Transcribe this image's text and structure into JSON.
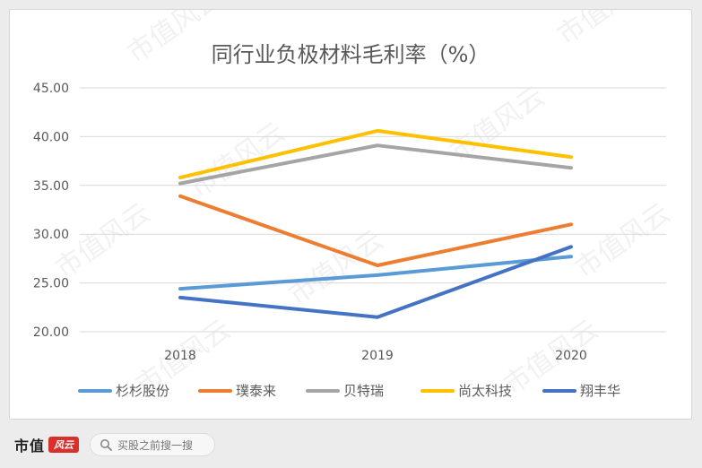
{
  "chart_data": {
    "type": "line",
    "title": "同行业负极材料毛利率（%）",
    "x": [
      "2018",
      "2019",
      "2020"
    ],
    "y_ticks": [
      "20.00",
      "25.00",
      "30.00",
      "35.00",
      "40.00",
      "45.00"
    ],
    "ylim": [
      20,
      45
    ],
    "grid": true,
    "legend_position": "bottom",
    "series": [
      {
        "name": "杉杉股份",
        "color": "#5b9bd5",
        "values": [
          24.4,
          25.8,
          27.7
        ]
      },
      {
        "name": "璞泰来",
        "color": "#ed7d31",
        "values": [
          33.9,
          26.8,
          31.0
        ]
      },
      {
        "name": "贝特瑞",
        "color": "#a5a5a5",
        "values": [
          35.2,
          39.1,
          36.8
        ]
      },
      {
        "name": "尚太科技",
        "color": "#ffc000",
        "values": [
          35.8,
          40.6,
          37.9
        ]
      },
      {
        "name": "翔丰华",
        "color": "#4472c4",
        "values": [
          23.5,
          21.5,
          28.7
        ]
      }
    ]
  },
  "watermark": "市值风云",
  "footer": {
    "brand_text": "市值",
    "brand_mark": "风云",
    "search_placeholder": "买股之前搜一搜"
  }
}
